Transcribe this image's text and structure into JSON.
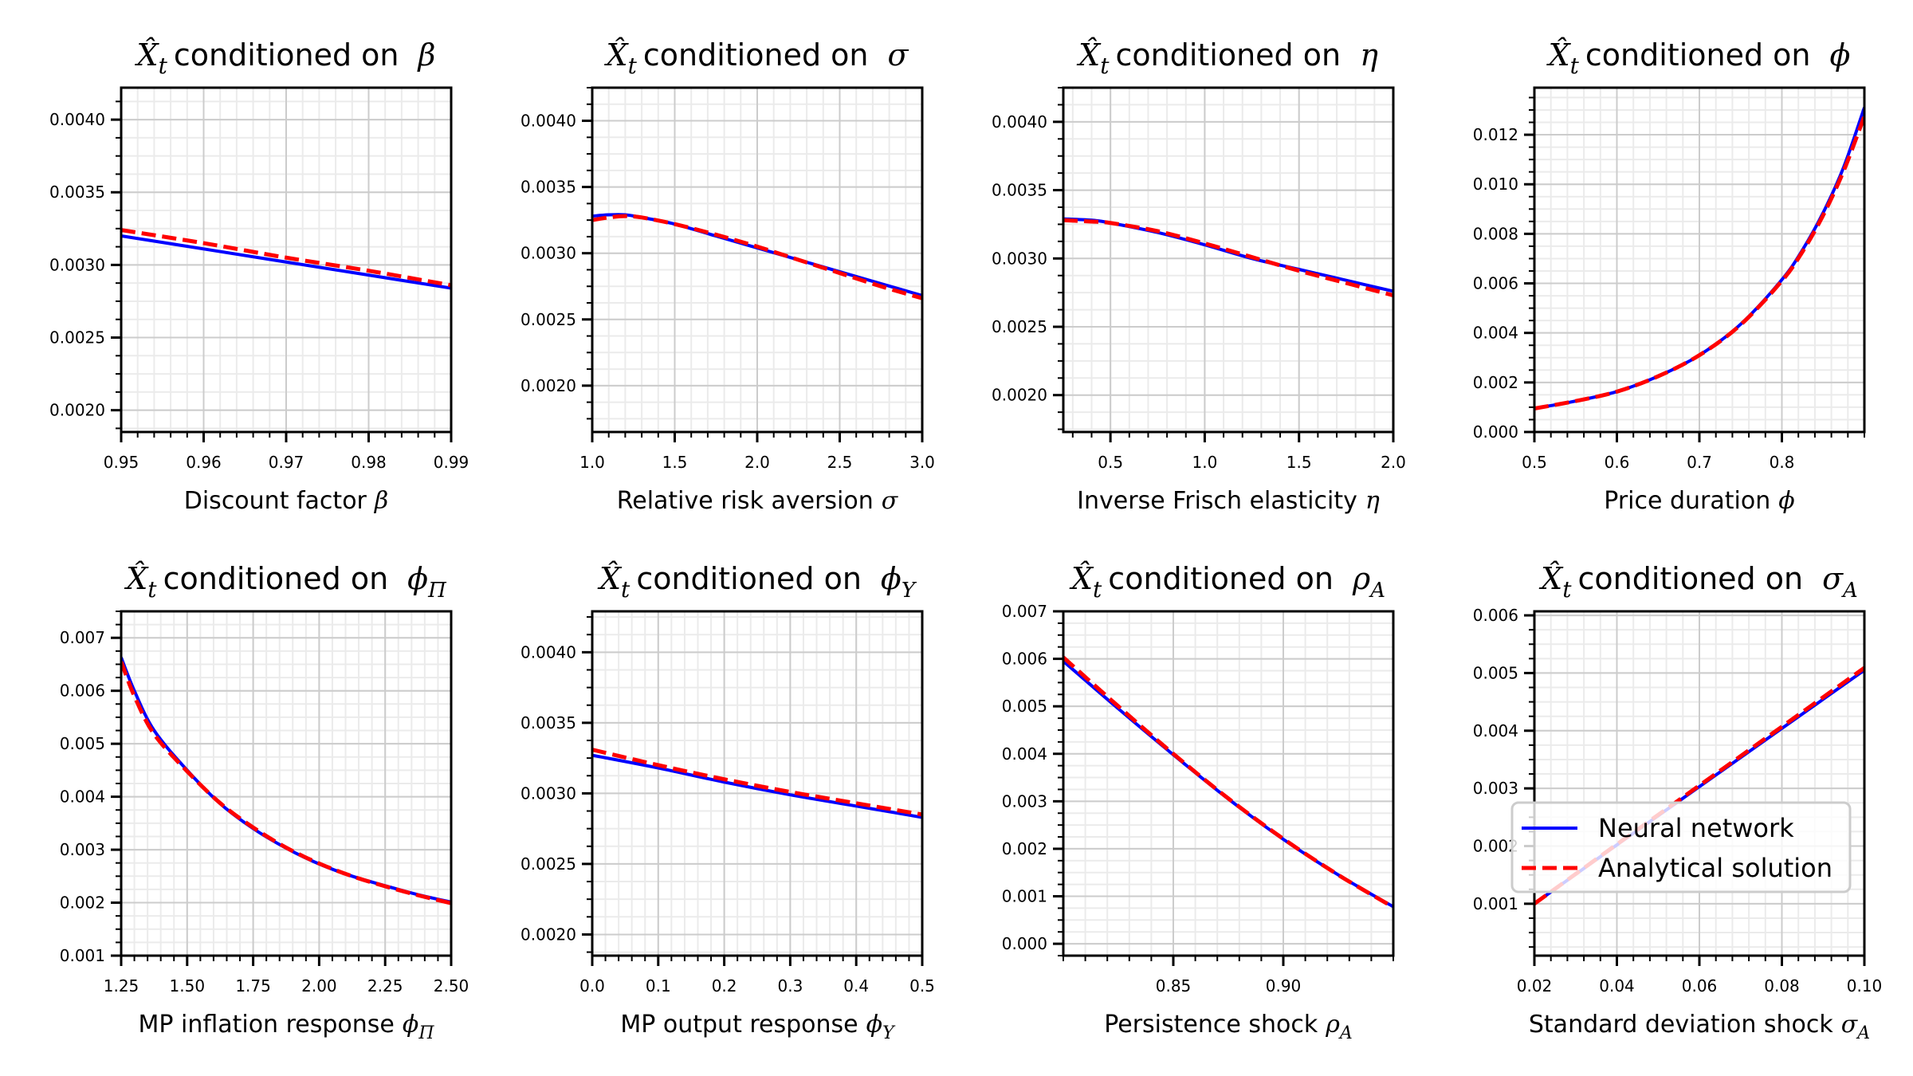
{
  "figure": {
    "legend": {
      "placement": "lower-right",
      "panel_index": 7,
      "entries": [
        {
          "label": "Neural network",
          "style": "solid",
          "color": "#0000ff"
        },
        {
          "label": "Analytical solution",
          "style": "dashed",
          "color": "#ff0000"
        }
      ]
    },
    "colors": {
      "neural_network": "#0000ff",
      "analytical": "#ff0000",
      "grid_major": "#cccccc",
      "grid_minor": "#ebebeb",
      "axis": "#000000"
    }
  },
  "chart_data": [
    {
      "type": "line",
      "title_prefix": "conditioned on",
      "title_var": "β",
      "title_sub": "",
      "xlabel_text": "Discount factor",
      "xlabel_var": "β",
      "xlabel_sub": "",
      "xlim": [
        0.95,
        0.99
      ],
      "ylim": [
        0.00185,
        0.00422
      ],
      "xticks": [
        0.95,
        0.96,
        0.97,
        0.98,
        0.99
      ],
      "xtick_labels": [
        "0.95",
        "0.96",
        "0.97",
        "0.98",
        "0.99"
      ],
      "xminor": 0.002,
      "yticks": [
        0.002,
        0.0025,
        0.003,
        0.0035,
        0.004
      ],
      "ytick_labels": [
        "0.0020",
        "0.0025",
        "0.0030",
        "0.0035",
        "0.0040"
      ],
      "yminor": 0.000125,
      "grid": true,
      "series": [
        {
          "name": "Neural network",
          "x": [
            0.95,
            0.96,
            0.97,
            0.98,
            0.99
          ],
          "y": [
            0.0032,
            0.00311,
            0.00302,
            0.00293,
            0.00284
          ]
        },
        {
          "name": "Analytical solution",
          "x": [
            0.95,
            0.96,
            0.97,
            0.98,
            0.99
          ],
          "y": [
            0.00324,
            0.00315,
            0.00305,
            0.00296,
            0.00286
          ]
        }
      ]
    },
    {
      "type": "line",
      "title_prefix": "conditioned on",
      "title_var": "σ",
      "title_sub": "",
      "xlabel_text": "Relative risk aversion",
      "xlabel_var": "σ",
      "xlabel_sub": "",
      "xlim": [
        1.0,
        3.0
      ],
      "ylim": [
        0.00165,
        0.00425
      ],
      "xticks": [
        1.0,
        1.5,
        2.0,
        2.5,
        3.0
      ],
      "xtick_labels": [
        "1.0",
        "1.5",
        "2.0",
        "2.5",
        "3.0"
      ],
      "xminor": 0.1,
      "yticks": [
        0.002,
        0.0025,
        0.003,
        0.0035,
        0.004
      ],
      "ytick_labels": [
        "0.0020",
        "0.0025",
        "0.0030",
        "0.0035",
        "0.0040"
      ],
      "yminor": 0.000125,
      "grid": true,
      "series": [
        {
          "name": "Neural network",
          "x": [
            1.0,
            1.1,
            1.2,
            1.3,
            1.5,
            1.75,
            2.0,
            2.25,
            2.5,
            2.75,
            3.0
          ],
          "y": [
            0.00328,
            0.00329,
            0.00329,
            0.00327,
            0.00322,
            0.00313,
            0.00304,
            0.00295,
            0.00286,
            0.00277,
            0.00268
          ]
        },
        {
          "name": "Analytical solution",
          "x": [
            1.0,
            1.1,
            1.2,
            1.3,
            1.5,
            1.75,
            2.0,
            2.25,
            2.5,
            2.75,
            3.0
          ],
          "y": [
            0.00325,
            0.00327,
            0.00328,
            0.00327,
            0.00322,
            0.00314,
            0.00305,
            0.00295,
            0.00285,
            0.00275,
            0.00266
          ]
        }
      ]
    },
    {
      "type": "line",
      "title_prefix": "conditioned on",
      "title_var": "η",
      "title_sub": "",
      "xlabel_text": "Inverse Frisch elasticity",
      "xlabel_var": "η",
      "xlabel_sub": "",
      "xlim": [
        0.25,
        2.0
      ],
      "ylim": [
        0.00173,
        0.00425
      ],
      "xticks": [
        0.5,
        1.0,
        1.5,
        2.0
      ],
      "xtick_labels": [
        "0.5",
        "1.0",
        "1.5",
        "2.0"
      ],
      "xminor": 0.1,
      "yticks": [
        0.002,
        0.0025,
        0.003,
        0.0035,
        0.004
      ],
      "ytick_labels": [
        "0.0020",
        "0.0025",
        "0.0030",
        "0.0035",
        "0.0040"
      ],
      "yminor": 0.000125,
      "grid": true,
      "series": [
        {
          "name": "Neural network",
          "x": [
            0.25,
            0.4,
            0.5,
            0.75,
            1.0,
            1.25,
            1.5,
            1.75,
            2.0
          ],
          "y": [
            0.00329,
            0.00328,
            0.00326,
            0.00319,
            0.0031,
            0.003,
            0.00292,
            0.00284,
            0.00276
          ]
        },
        {
          "name": "Analytical solution",
          "x": [
            0.25,
            0.4,
            0.5,
            0.75,
            1.0,
            1.25,
            1.5,
            1.75,
            2.0
          ],
          "y": [
            0.00328,
            0.00327,
            0.00326,
            0.0032,
            0.00311,
            0.00301,
            0.00291,
            0.00282,
            0.00273
          ]
        }
      ]
    },
    {
      "type": "line",
      "title_prefix": "conditioned on",
      "title_var": "ϕ",
      "title_sub": "",
      "xlabel_text": "Price duration",
      "xlabel_var": "ϕ",
      "xlabel_sub": "",
      "xlim": [
        0.5,
        0.9
      ],
      "ylim": [
        0.0,
        0.0139
      ],
      "xticks": [
        0.5,
        0.6,
        0.7,
        0.8
      ],
      "xtick_labels": [
        "0.5",
        "0.6",
        "0.7",
        "0.8"
      ],
      "xminor": 0.02,
      "yticks": [
        0.0,
        0.002,
        0.004,
        0.006,
        0.008,
        0.01,
        0.012
      ],
      "ytick_labels": [
        "0.000",
        "0.002",
        "0.004",
        "0.006",
        "0.008",
        "0.010",
        "0.012"
      ],
      "yminor": 0.0005,
      "grid": true,
      "series": [
        {
          "name": "Neural network",
          "x": [
            0.5,
            0.55,
            0.6,
            0.65,
            0.7,
            0.75,
            0.8,
            0.825,
            0.85,
            0.875,
            0.9
          ],
          "y": [
            0.00095,
            0.00125,
            0.00163,
            0.00225,
            0.0031,
            0.00435,
            0.00615,
            0.00735,
            0.00885,
            0.0107,
            0.0131
          ]
        },
        {
          "name": "Analytical solution",
          "x": [
            0.5,
            0.55,
            0.6,
            0.65,
            0.7,
            0.75,
            0.8,
            0.825,
            0.85,
            0.875,
            0.9
          ],
          "y": [
            0.00095,
            0.00125,
            0.00163,
            0.00225,
            0.0031,
            0.00433,
            0.0061,
            0.00728,
            0.00875,
            0.01055,
            0.01275
          ]
        }
      ]
    },
    {
      "type": "line",
      "title_prefix": "conditioned on",
      "title_var": "ϕ",
      "title_sub": "Π",
      "xlabel_text": "MP inflation response",
      "xlabel_var": "ϕ",
      "xlabel_sub": "Π",
      "xlim": [
        1.25,
        2.5
      ],
      "ylim": [
        0.001,
        0.0075
      ],
      "xticks": [
        1.25,
        1.5,
        1.75,
        2.0,
        2.25,
        2.5
      ],
      "xtick_labels": [
        "1.25",
        "1.50",
        "1.75",
        "2.00",
        "2.25",
        "2.50"
      ],
      "xminor": 0.05,
      "yticks": [
        0.001,
        0.002,
        0.003,
        0.004,
        0.005,
        0.006,
        0.007
      ],
      "ytick_labels": [
        "0.001",
        "0.002",
        "0.003",
        "0.004",
        "0.005",
        "0.006",
        "0.007"
      ],
      "yminor": 0.00025,
      "grid": true,
      "series": [
        {
          "name": "Neural network",
          "x": [
            1.25,
            1.3,
            1.375,
            1.5,
            1.625,
            1.75,
            1.875,
            2.0,
            2.125,
            2.25,
            2.375,
            2.5
          ],
          "y": [
            0.00663,
            0.006,
            0.00525,
            0.0045,
            0.00387,
            0.0034,
            0.00303,
            0.00273,
            0.0025,
            0.00232,
            0.00215,
            0.00201
          ]
        },
        {
          "name": "Analytical solution",
          "x": [
            1.25,
            1.3,
            1.375,
            1.5,
            1.625,
            1.75,
            1.875,
            2.0,
            2.125,
            2.25,
            2.375,
            2.5
          ],
          "y": [
            0.00655,
            0.0059,
            0.00518,
            0.00448,
            0.00388,
            0.00342,
            0.00304,
            0.00274,
            0.0025,
            0.00231,
            0.00214,
            0.00199
          ]
        }
      ]
    },
    {
      "type": "line",
      "title_prefix": "conditioned on",
      "title_var": "ϕ",
      "title_sub": "Y",
      "xlabel_text": "MP output response",
      "xlabel_var": "ϕ",
      "xlabel_sub": "Y",
      "xlim": [
        0.0,
        0.5
      ],
      "ylim": [
        0.00185,
        0.00429
      ],
      "xticks": [
        0.0,
        0.1,
        0.2,
        0.3,
        0.4,
        0.5
      ],
      "xtick_labels": [
        "0.0",
        "0.1",
        "0.2",
        "0.3",
        "0.4",
        "0.5"
      ],
      "xminor": 0.02,
      "yticks": [
        0.002,
        0.0025,
        0.003,
        0.0035,
        0.004
      ],
      "ytick_labels": [
        "0.0020",
        "0.0025",
        "0.0030",
        "0.0035",
        "0.0040"
      ],
      "yminor": 0.000125,
      "grid": true,
      "series": [
        {
          "name": "Neural network",
          "x": [
            0.0,
            0.1,
            0.2,
            0.3,
            0.4,
            0.5
          ],
          "y": [
            0.00327,
            0.00318,
            0.00308,
            0.00299,
            0.00291,
            0.00283
          ]
        },
        {
          "name": "Analytical solution",
          "x": [
            0.0,
            0.1,
            0.2,
            0.3,
            0.4,
            0.5
          ],
          "y": [
            0.00331,
            0.0032,
            0.0031,
            0.00301,
            0.00293,
            0.00285
          ]
        }
      ]
    },
    {
      "type": "line",
      "title_prefix": "conditioned on",
      "title_var": "ρ",
      "title_sub": "A",
      "xlabel_text": "Persistence shock",
      "xlabel_var": "ρ",
      "xlabel_sub": "A",
      "xlim": [
        0.8,
        0.95
      ],
      "ylim": [
        -0.00025,
        0.007
      ],
      "xticks": [
        0.85,
        0.9
      ],
      "xtick_labels": [
        "0.85",
        "0.90"
      ],
      "xminor": 0.01,
      "yticks": [
        0.0,
        0.001,
        0.002,
        0.003,
        0.004,
        0.005,
        0.006,
        0.007
      ],
      "ytick_labels": [
        "0.000",
        "0.001",
        "0.002",
        "0.003",
        "0.004",
        "0.005",
        "0.006",
        "0.007"
      ],
      "yminor": 0.00025,
      "grid": true,
      "series": [
        {
          "name": "Neural network",
          "x": [
            0.8,
            0.825,
            0.85,
            0.875,
            0.9,
            0.925,
            0.95
          ],
          "y": [
            0.00595,
            0.00495,
            0.00398,
            0.00305,
            0.0022,
            0.00145,
            0.00078
          ]
        },
        {
          "name": "Analytical solution",
          "x": [
            0.8,
            0.825,
            0.85,
            0.875,
            0.9,
            0.925,
            0.95
          ],
          "y": [
            0.00603,
            0.005,
            0.004,
            0.00306,
            0.00221,
            0.00145,
            0.00077
          ]
        }
      ]
    },
    {
      "type": "line",
      "title_prefix": "conditioned on",
      "title_var": "σ",
      "title_sub": "A",
      "xlabel_text": "Standard deviation shock",
      "xlabel_var": "σ",
      "xlabel_sub": "A",
      "xlim": [
        0.02,
        0.1
      ],
      "ylim": [
        0.0001,
        0.00607
      ],
      "xticks": [
        0.02,
        0.04,
        0.06,
        0.08,
        0.1
      ],
      "xtick_labels": [
        "0.02",
        "0.04",
        "0.06",
        "0.08",
        "0.10"
      ],
      "xminor": 0.004,
      "yticks": [
        0.001,
        0.002,
        0.003,
        0.004,
        0.005,
        0.006
      ],
      "ytick_labels": [
        "0.001",
        "0.002",
        "0.003",
        "0.004",
        "0.005",
        "0.006"
      ],
      "yminor": 0.00025,
      "grid": true,
      "series": [
        {
          "name": "Neural network",
          "x": [
            0.02,
            0.04,
            0.06,
            0.08,
            0.1
          ],
          "y": [
            0.001,
            0.00202,
            0.00303,
            0.00404,
            0.00505
          ]
        },
        {
          "name": "Analytical solution",
          "x": [
            0.02,
            0.04,
            0.06,
            0.08,
            0.1
          ],
          "y": [
            0.001,
            0.00203,
            0.00305,
            0.00407,
            0.00509
          ]
        }
      ]
    }
  ]
}
